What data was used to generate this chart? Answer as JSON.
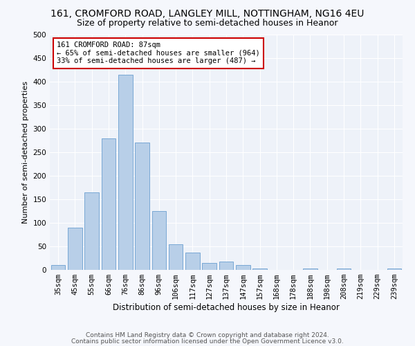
{
  "title_line1": "161, CROMFORD ROAD, LANGLEY MILL, NOTTINGHAM, NG16 4EU",
  "title_line2": "Size of property relative to semi-detached houses in Heanor",
  "xlabel": "Distribution of semi-detached houses by size in Heanor",
  "ylabel": "Number of semi-detached properties",
  "categories": [
    "35sqm",
    "45sqm",
    "55sqm",
    "66sqm",
    "76sqm",
    "86sqm",
    "96sqm",
    "106sqm",
    "117sqm",
    "127sqm",
    "137sqm",
    "147sqm",
    "157sqm",
    "168sqm",
    "178sqm",
    "188sqm",
    "198sqm",
    "208sqm",
    "219sqm",
    "229sqm",
    "239sqm"
  ],
  "values": [
    10,
    90,
    165,
    280,
    415,
    270,
    125,
    55,
    37,
    15,
    17,
    10,
    3,
    0,
    0,
    3,
    0,
    3,
    0,
    0,
    3
  ],
  "bar_color": "#b8cfe8",
  "bar_edge_color": "#6a9fd0",
  "annotation_text": "161 CROMFORD ROAD: 87sqm\n← 65% of semi-detached houses are smaller (964)\n33% of semi-detached houses are larger (487) →",
  "annotation_box_color": "#ffffff",
  "annotation_box_edge_color": "#cc0000",
  "footer_line1": "Contains HM Land Registry data © Crown copyright and database right 2024.",
  "footer_line2": "Contains public sector information licensed under the Open Government Licence v3.0.",
  "ylim": [
    0,
    500
  ],
  "yticks": [
    0,
    50,
    100,
    150,
    200,
    250,
    300,
    350,
    400,
    450,
    500
  ],
  "bg_color": "#eef2f9",
  "fig_color": "#f5f7fc",
  "grid_color": "#ffffff",
  "title1_fontsize": 10,
  "title2_fontsize": 9,
  "xlabel_fontsize": 8.5,
  "ylabel_fontsize": 8,
  "tick_fontsize": 7.5,
  "annotation_fontsize": 7.5,
  "footer_fontsize": 6.5
}
